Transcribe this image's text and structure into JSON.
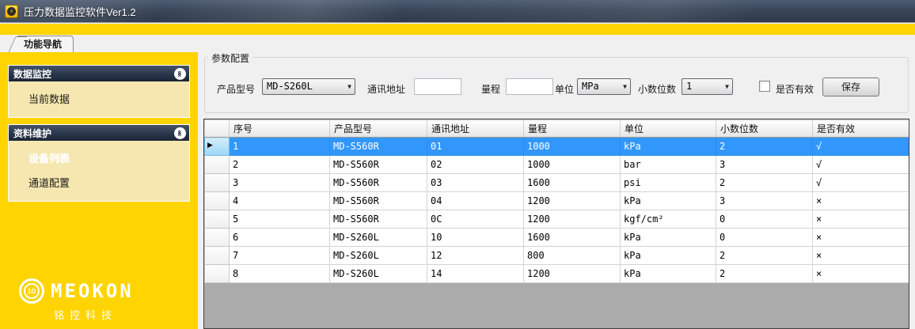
{
  "window": {
    "title": "压力数据监控软件Ver1.2"
  },
  "tab": {
    "label": "功能导航"
  },
  "sidebar": {
    "sections": [
      {
        "title": "数据监控",
        "items": [
          {
            "label": "当前数据"
          }
        ]
      },
      {
        "title": "资料维护",
        "items": [
          {
            "label": "设备列表"
          },
          {
            "label": "通道配置"
          }
        ]
      }
    ],
    "logo": {
      "badge": "1D",
      "brand": "MEOKON",
      "subtitle": "铭控科技"
    }
  },
  "form": {
    "group_title": "参数配置",
    "fields": {
      "product": {
        "label": "产品型号",
        "value": "MD-S260L"
      },
      "address": {
        "label": "通讯地址",
        "value": ""
      },
      "range": {
        "label": "量程",
        "value": ""
      },
      "unit": {
        "label": "单位",
        "value": "MPa"
      },
      "decimals": {
        "label": "小数位数",
        "value": "1"
      }
    },
    "valid_checkbox": {
      "label": "是否有效",
      "checked": false
    },
    "save_button": "保存"
  },
  "table": {
    "columns": [
      "序号",
      "产品型号",
      "通讯地址",
      "量程",
      "单位",
      "小数位数",
      "是否有效"
    ],
    "rows": [
      [
        "1",
        "MD-S560R",
        "01",
        "1000",
        "kPa",
        "2",
        "√"
      ],
      [
        "2",
        "MD-S560R",
        "02",
        "1000",
        "bar",
        "3",
        "√"
      ],
      [
        "3",
        "MD-S560R",
        "03",
        "1600",
        "psi",
        "2",
        "√"
      ],
      [
        "4",
        "MD-S560R",
        "04",
        "1200",
        "kPa",
        "3",
        "×"
      ],
      [
        "5",
        "MD-S560R",
        "0C",
        "1200",
        "kgf/cm²",
        "0",
        "×"
      ],
      [
        "6",
        "MD-S260L",
        "10",
        "1600",
        "kPa",
        "0",
        "×"
      ],
      [
        "7",
        "MD-S260L",
        "12",
        "800",
        "kPa",
        "2",
        "×"
      ],
      [
        "8",
        "MD-S260L",
        "14",
        "1200",
        "kPa",
        "2",
        "×"
      ]
    ],
    "selected_row": 0
  },
  "colors": {
    "brand_yellow": "#FFD400",
    "panel_cream": "#F6E7B0",
    "header_navy": "#2A364A",
    "titlebar": "#3B4759",
    "selection_blue": "#3297FD",
    "grid_empty": "#ABABAB"
  }
}
